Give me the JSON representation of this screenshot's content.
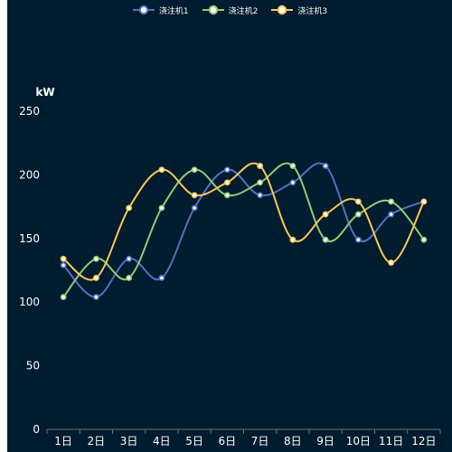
{
  "chart_data": {
    "type": "line",
    "smooth": true,
    "ylabel": "kW",
    "ylim": [
      0,
      250
    ],
    "yticks": [
      0,
      50,
      100,
      150,
      200,
      250
    ],
    "categories": [
      "1日",
      "2日",
      "3日",
      "4日",
      "5日",
      "6日",
      "7日",
      "8日",
      "9日",
      "10日",
      "11日",
      "12日"
    ],
    "series": [
      {
        "name": "浇注机1",
        "color": "#5470c6",
        "values": [
          129,
          104,
          134,
          119,
          174,
          204,
          184,
          194,
          207,
          149,
          169,
          179
        ]
      },
      {
        "name": "浇注机2",
        "color": "#91cc75",
        "values": [
          104,
          134,
          119,
          174,
          204,
          184,
          194,
          207,
          149,
          169,
          179,
          149
        ]
      },
      {
        "name": "浇注机3",
        "color": "#fac858",
        "values": [
          134,
          119,
          174,
          204,
          184,
          194,
          207,
          149,
          169,
          179,
          131,
          179
        ]
      }
    ],
    "grid": false,
    "legend_position": "top-center"
  }
}
